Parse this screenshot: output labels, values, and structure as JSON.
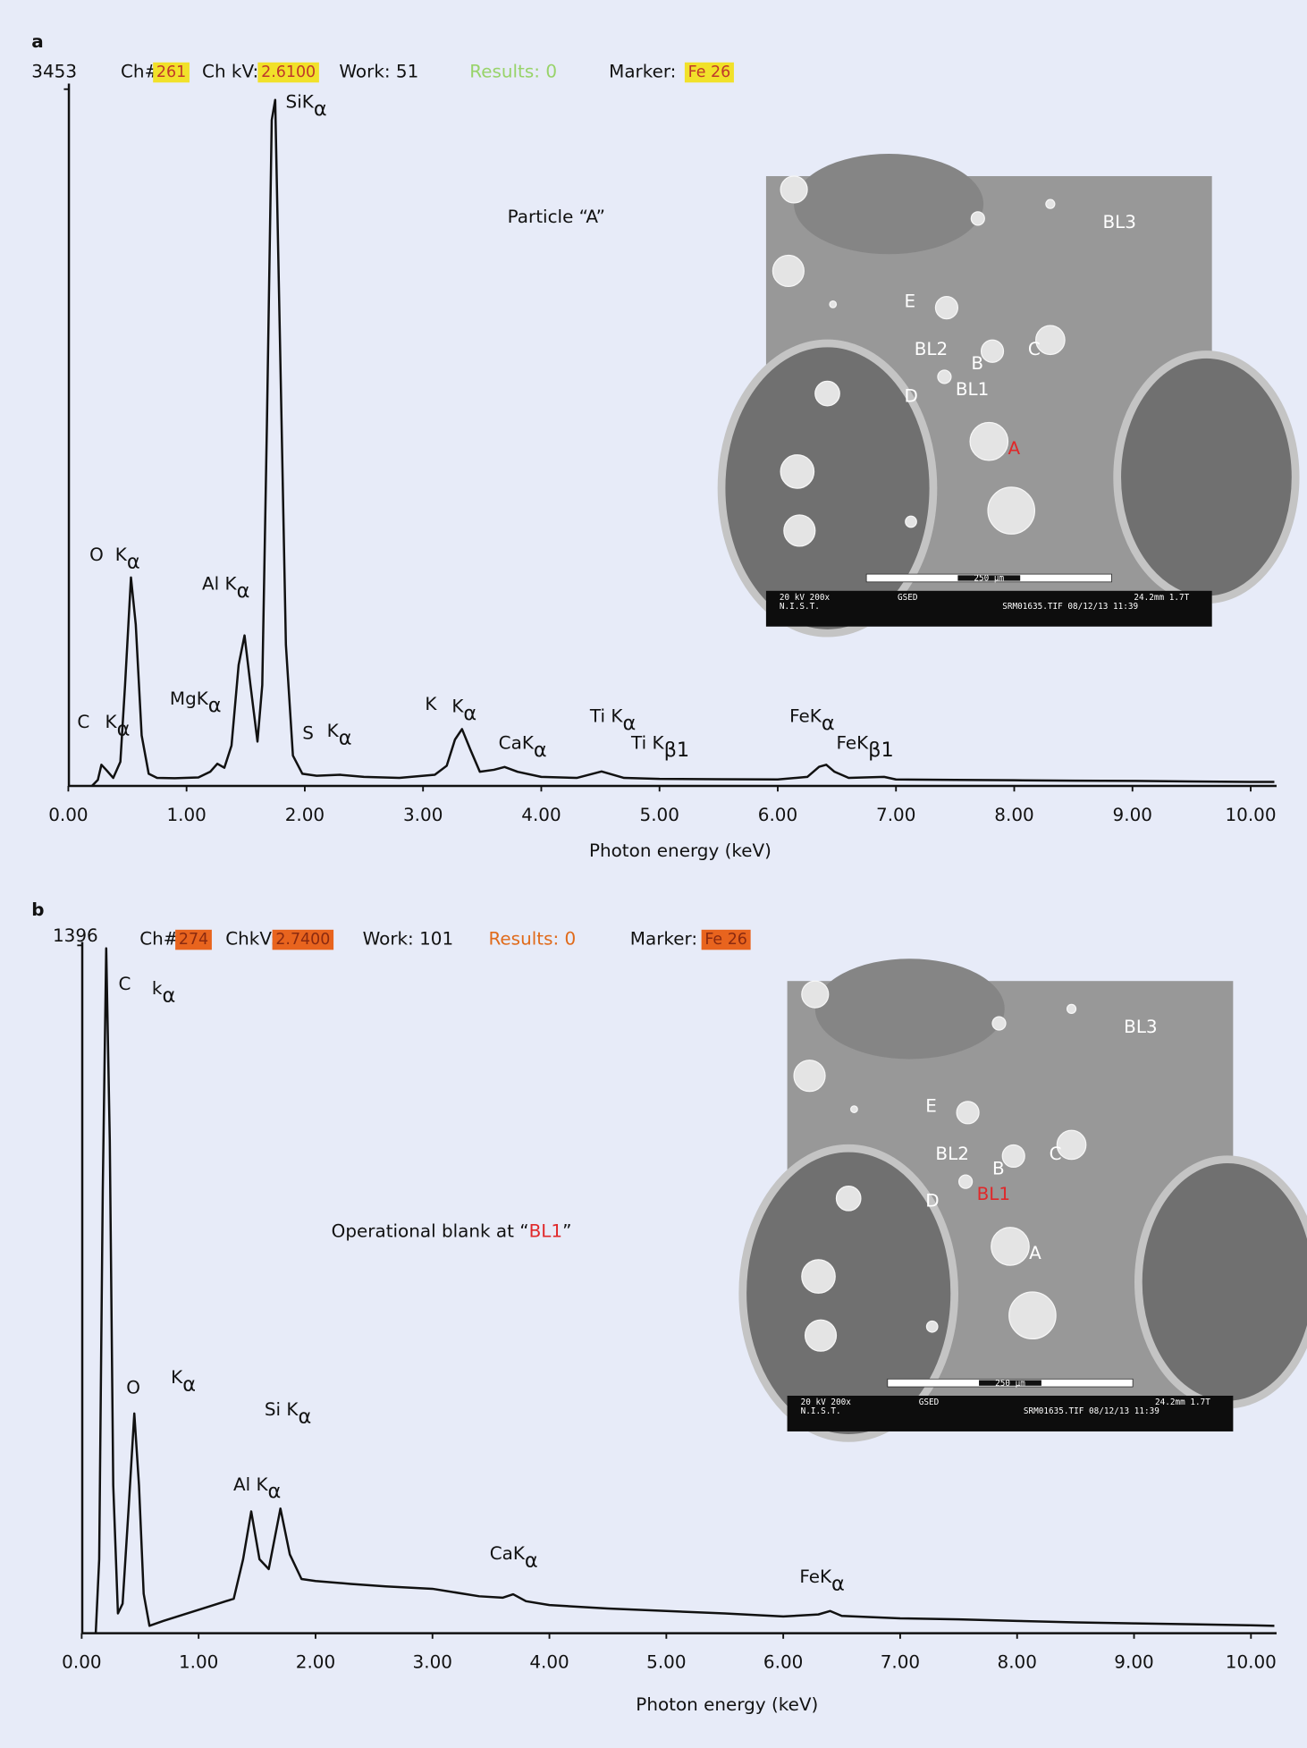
{
  "chart_data": [
    {
      "type": "line",
      "panel": "a",
      "header": {
        "ch_label": "Ch#:",
        "ch": "261",
        "chkv_label": "Ch kV:",
        "chkv": "2.6100",
        "work": "Work: 51",
        "results": "Results: 0",
        "marker_label": "Marker:",
        "marker": "Fe   26",
        "highlight_color": "#f1e12a",
        "highlight_text_color": "#c0392b",
        "results_color": "#98d36a"
      },
      "subtitle": [
        {
          "text": "Particle “A”"
        }
      ],
      "x_label": "Photon energy (keV)",
      "color": "#111111",
      "xlim": [
        0,
        10.2
      ],
      "ylim": [
        0,
        3453
      ],
      "yticks": [
        3453
      ],
      "xticks": [
        {
          "value": 0,
          "label": "0.00"
        },
        {
          "value": 1,
          "label": "1.00"
        },
        {
          "value": 2,
          "label": "2.00"
        },
        {
          "value": 3,
          "label": "3.00"
        },
        {
          "value": 4,
          "label": "4.00"
        },
        {
          "value": 5,
          "label": "5.00"
        },
        {
          "value": 6,
          "label": "6.00"
        },
        {
          "value": 7,
          "label": "7.00"
        },
        {
          "value": 8,
          "label": "8.00"
        },
        {
          "value": 9,
          "label": "9.00"
        },
        {
          "value": 10,
          "label": "10.00"
        }
      ],
      "x": [
        0.2,
        0.25,
        0.28,
        0.32,
        0.38,
        0.44,
        0.48,
        0.53,
        0.57,
        0.62,
        0.68,
        0.75,
        0.9,
        1.1,
        1.2,
        1.26,
        1.32,
        1.38,
        1.44,
        1.49,
        1.54,
        1.6,
        1.64,
        1.68,
        1.72,
        1.75,
        1.79,
        1.84,
        1.9,
        1.98,
        2.1,
        2.3,
        2.5,
        2.8,
        3.1,
        3.2,
        3.27,
        3.33,
        3.4,
        3.48,
        3.6,
        3.69,
        3.8,
        4.0,
        4.3,
        4.51,
        4.7,
        5.0,
        5.5,
        6.0,
        6.25,
        6.35,
        6.41,
        6.48,
        6.6,
        6.9,
        7.0,
        7.5,
        8.0,
        8.5,
        9.0,
        9.5,
        10.0,
        10.2
      ],
      "values": [
        0,
        30,
        105,
        80,
        40,
        120,
        500,
        1033,
        800,
        250,
        60,
        40,
        38,
        42,
        70,
        110,
        90,
        200,
        600,
        746,
        500,
        220,
        500,
        1800,
        3300,
        3400,
        2200,
        700,
        150,
        60,
        50,
        55,
        45,
        40,
        55,
        100,
        230,
        282,
        180,
        70,
        80,
        94,
        70,
        45,
        40,
        72,
        40,
        35,
        33,
        32,
        45,
        95,
        105,
        70,
        40,
        45,
        32,
        30,
        28,
        26,
        25,
        22,
        20,
        20
      ],
      "annotations": [
        {
          "text": "O"
        },
        {
          "text": "K",
          "sub": "α"
        },
        {
          "text": "Al K",
          "sub": "α"
        },
        {
          "text": "SiK",
          "sub": "α"
        },
        {
          "text": "MgK",
          "sub": "α"
        },
        {
          "text": "C"
        },
        {
          "text": "K",
          "sub": "α"
        },
        {
          "text": "S"
        },
        {
          "text": "K",
          "sub": "α"
        },
        {
          "text": "K"
        },
        {
          "text": "K",
          "sub": "α"
        },
        {
          "text": "CaK",
          "sub": "α"
        },
        {
          "text": "Ti K",
          "sub": "α"
        },
        {
          "text": "Ti K",
          "sub": "β1"
        },
        {
          "text": "FeK",
          "sub": "α"
        },
        {
          "text": "FeK",
          "sub": "β1"
        }
      ],
      "inset": {
        "labels": [
          {
            "text": "BL3",
            "color": "#ffffff"
          },
          {
            "text": "E",
            "color": "#ffffff"
          },
          {
            "text": "BL2",
            "color": "#ffffff"
          },
          {
            "text": "B",
            "color": "#ffffff"
          },
          {
            "text": "C",
            "color": "#ffffff"
          },
          {
            "text": "D",
            "color": "#ffffff"
          },
          {
            "text": "BL1",
            "color": "#ffffff"
          },
          {
            "text": "A",
            "color": "#e0282a"
          }
        ],
        "scale_bar": "250 µm",
        "footer": [
          "20 kV  200x",
          "GSED",
          "24.2mm  1.7T",
          "N.I.S.T.",
          "SRM01635.TIF  08/12/13 11:39"
        ]
      }
    },
    {
      "type": "line",
      "panel": "b",
      "header": {
        "ch_label": "Ch#:",
        "ch": "274",
        "chkv_label": "ChkV:",
        "chkv": "2.7400",
        "work": "Work: 101",
        "results": "Results: 0",
        "marker_label": "Marker:",
        "marker": "Fe   26",
        "highlight_color": "#e8641e",
        "highlight_text_color": "#8a2a10",
        "results_color": "#e06a1a"
      },
      "subtitle": [
        {
          "text": "Operational blank at “"
        },
        {
          "text": "BL1",
          "color": "#e0282a"
        },
        {
          "text": "”"
        }
      ],
      "x_label": "Photon energy (keV)",
      "color": "#111111",
      "xlim": [
        0,
        10.2
      ],
      "ylim": [
        0,
        1396
      ],
      "yticks": [
        1396
      ],
      "xticks": [
        {
          "value": 0,
          "label": "0.00"
        },
        {
          "value": 1,
          "label": "1.00"
        },
        {
          "value": 2,
          "label": "2.00"
        },
        {
          "value": 3,
          "label": "3.00"
        },
        {
          "value": 4,
          "label": "4.00"
        },
        {
          "value": 5,
          "label": "5.00"
        },
        {
          "value": 6,
          "label": "6.00"
        },
        {
          "value": 7,
          "label": "7.00"
        },
        {
          "value": 8,
          "label": "8.00"
        },
        {
          "value": 9,
          "label": "9.00"
        },
        {
          "value": 10,
          "label": "10.00"
        }
      ],
      "x": [
        0.12,
        0.15,
        0.18,
        0.21,
        0.24,
        0.27,
        0.31,
        0.35,
        0.4,
        0.45,
        0.49,
        0.53,
        0.58,
        0.7,
        0.9,
        1.1,
        1.3,
        1.38,
        1.45,
        1.52,
        1.6,
        1.7,
        1.78,
        1.88,
        2.0,
        2.3,
        2.6,
        3.0,
        3.4,
        3.6,
        3.69,
        3.8,
        4.0,
        4.5,
        5.0,
        5.5,
        6.0,
        6.3,
        6.4,
        6.5,
        7.0,
        7.5,
        8.0,
        8.5,
        9.0,
        9.5,
        10.0,
        10.2
      ],
      "values": [
        0,
        150,
        900,
        1390,
        1000,
        300,
        40,
        60,
        250,
        446,
        300,
        80,
        15,
        25,
        40,
        55,
        70,
        150,
        247,
        150,
        130,
        253,
        160,
        110,
        106,
        100,
        95,
        90,
        75,
        72,
        79,
        65,
        57,
        50,
        45,
        40,
        34,
        38,
        45,
        35,
        30,
        28,
        25,
        22,
        20,
        18,
        16,
        15
      ],
      "annotations": [
        {
          "text": "C"
        },
        {
          "text": "k",
          "sub": "α"
        },
        {
          "text": "O"
        },
        {
          "text": "K",
          "sub": "α"
        },
        {
          "text": "Si K",
          "sub": "α"
        },
        {
          "text": "Al K",
          "sub": "α"
        },
        {
          "text": "CaK",
          "sub": "α"
        },
        {
          "text": "FeK",
          "sub": "α"
        }
      ],
      "inset": {
        "labels": [
          {
            "text": "BL3",
            "color": "#ffffff"
          },
          {
            "text": "E",
            "color": "#ffffff"
          },
          {
            "text": "BL2",
            "color": "#ffffff"
          },
          {
            "text": "B",
            "color": "#ffffff"
          },
          {
            "text": "C",
            "color": "#ffffff"
          },
          {
            "text": "D",
            "color": "#ffffff"
          },
          {
            "text": "BL1",
            "color": "#e0282a"
          },
          {
            "text": "A",
            "color": "#ffffff"
          }
        ],
        "scale_bar": "250 µm",
        "footer": [
          "20 kV  200x",
          "GSED",
          "24.2mm  1.7T",
          "N.I.S.T.",
          "SRM01635.TIF  08/12/13 11:39"
        ]
      }
    }
  ]
}
